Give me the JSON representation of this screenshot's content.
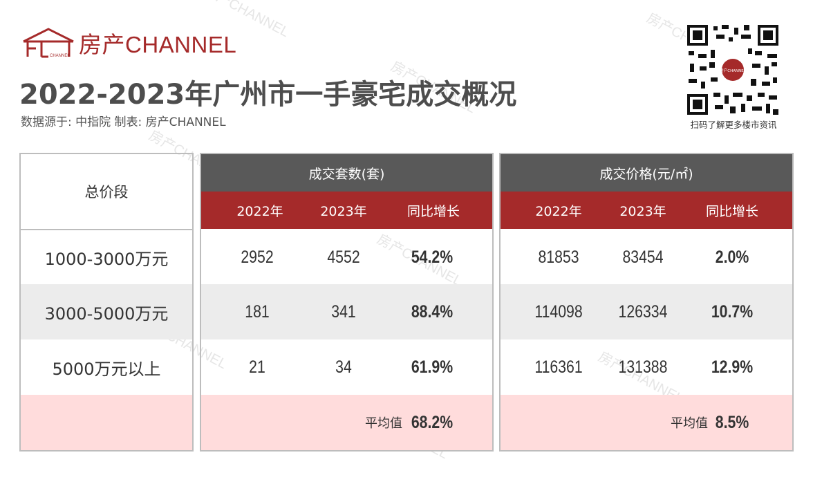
{
  "brand": {
    "name": "房产CHANNEL",
    "logo_small_text": "CHANNEL"
  },
  "title": "2022-2023年广州市一手豪宅成交概况",
  "source": "数据源于: 中指院   制表: 房产CHANNEL",
  "qr": {
    "caption": "扫码了解更多楼市资讯",
    "center_text": "房产CHANNEL"
  },
  "watermark": "房产CHANNEL",
  "table": {
    "price_band_header": "总价段",
    "groups": [
      {
        "label": "成交套数(套)",
        "columns": [
          "2022年",
          "2023年",
          "同比增长"
        ]
      },
      {
        "label": "成交价格(元/㎡)",
        "columns": [
          "2022年",
          "2023年",
          "同比增长"
        ]
      }
    ],
    "rows": [
      {
        "band": "1000-3000万元",
        "units_2022": "2952",
        "units_2023": "4552",
        "units_yoy": "54.2%",
        "price_2022": "81853",
        "price_2023": "83454",
        "price_yoy": "2.0%"
      },
      {
        "band": "3000-5000万元",
        "units_2022": "181",
        "units_2023": "341",
        "units_yoy": "88.4%",
        "price_2022": "114098",
        "price_2023": "126334",
        "price_yoy": "10.7%"
      },
      {
        "band": "5000万元以上",
        "units_2022": "21",
        "units_2023": "34",
        "units_yoy": "61.9%",
        "price_2022": "116361",
        "price_2023": "131388",
        "price_yoy": "12.9%"
      }
    ],
    "average": {
      "label": "平均值",
      "units_yoy": "68.2%",
      "price_yoy": "8.5%"
    }
  }
}
